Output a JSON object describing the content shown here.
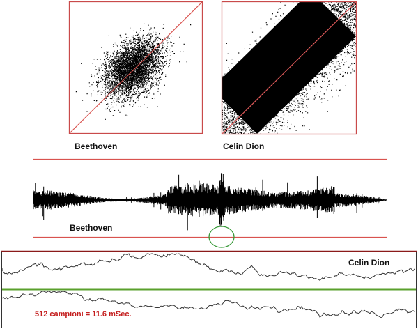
{
  "scatter_panels": [
    {
      "label": "Beethoven"
    },
    {
      "label": "Celin Dion"
    }
  ],
  "waveform": {
    "label": "Beethoven"
  },
  "detail": {
    "label": "Celin Dion",
    "note": "512 campioni = 11.6 mSec."
  }
}
